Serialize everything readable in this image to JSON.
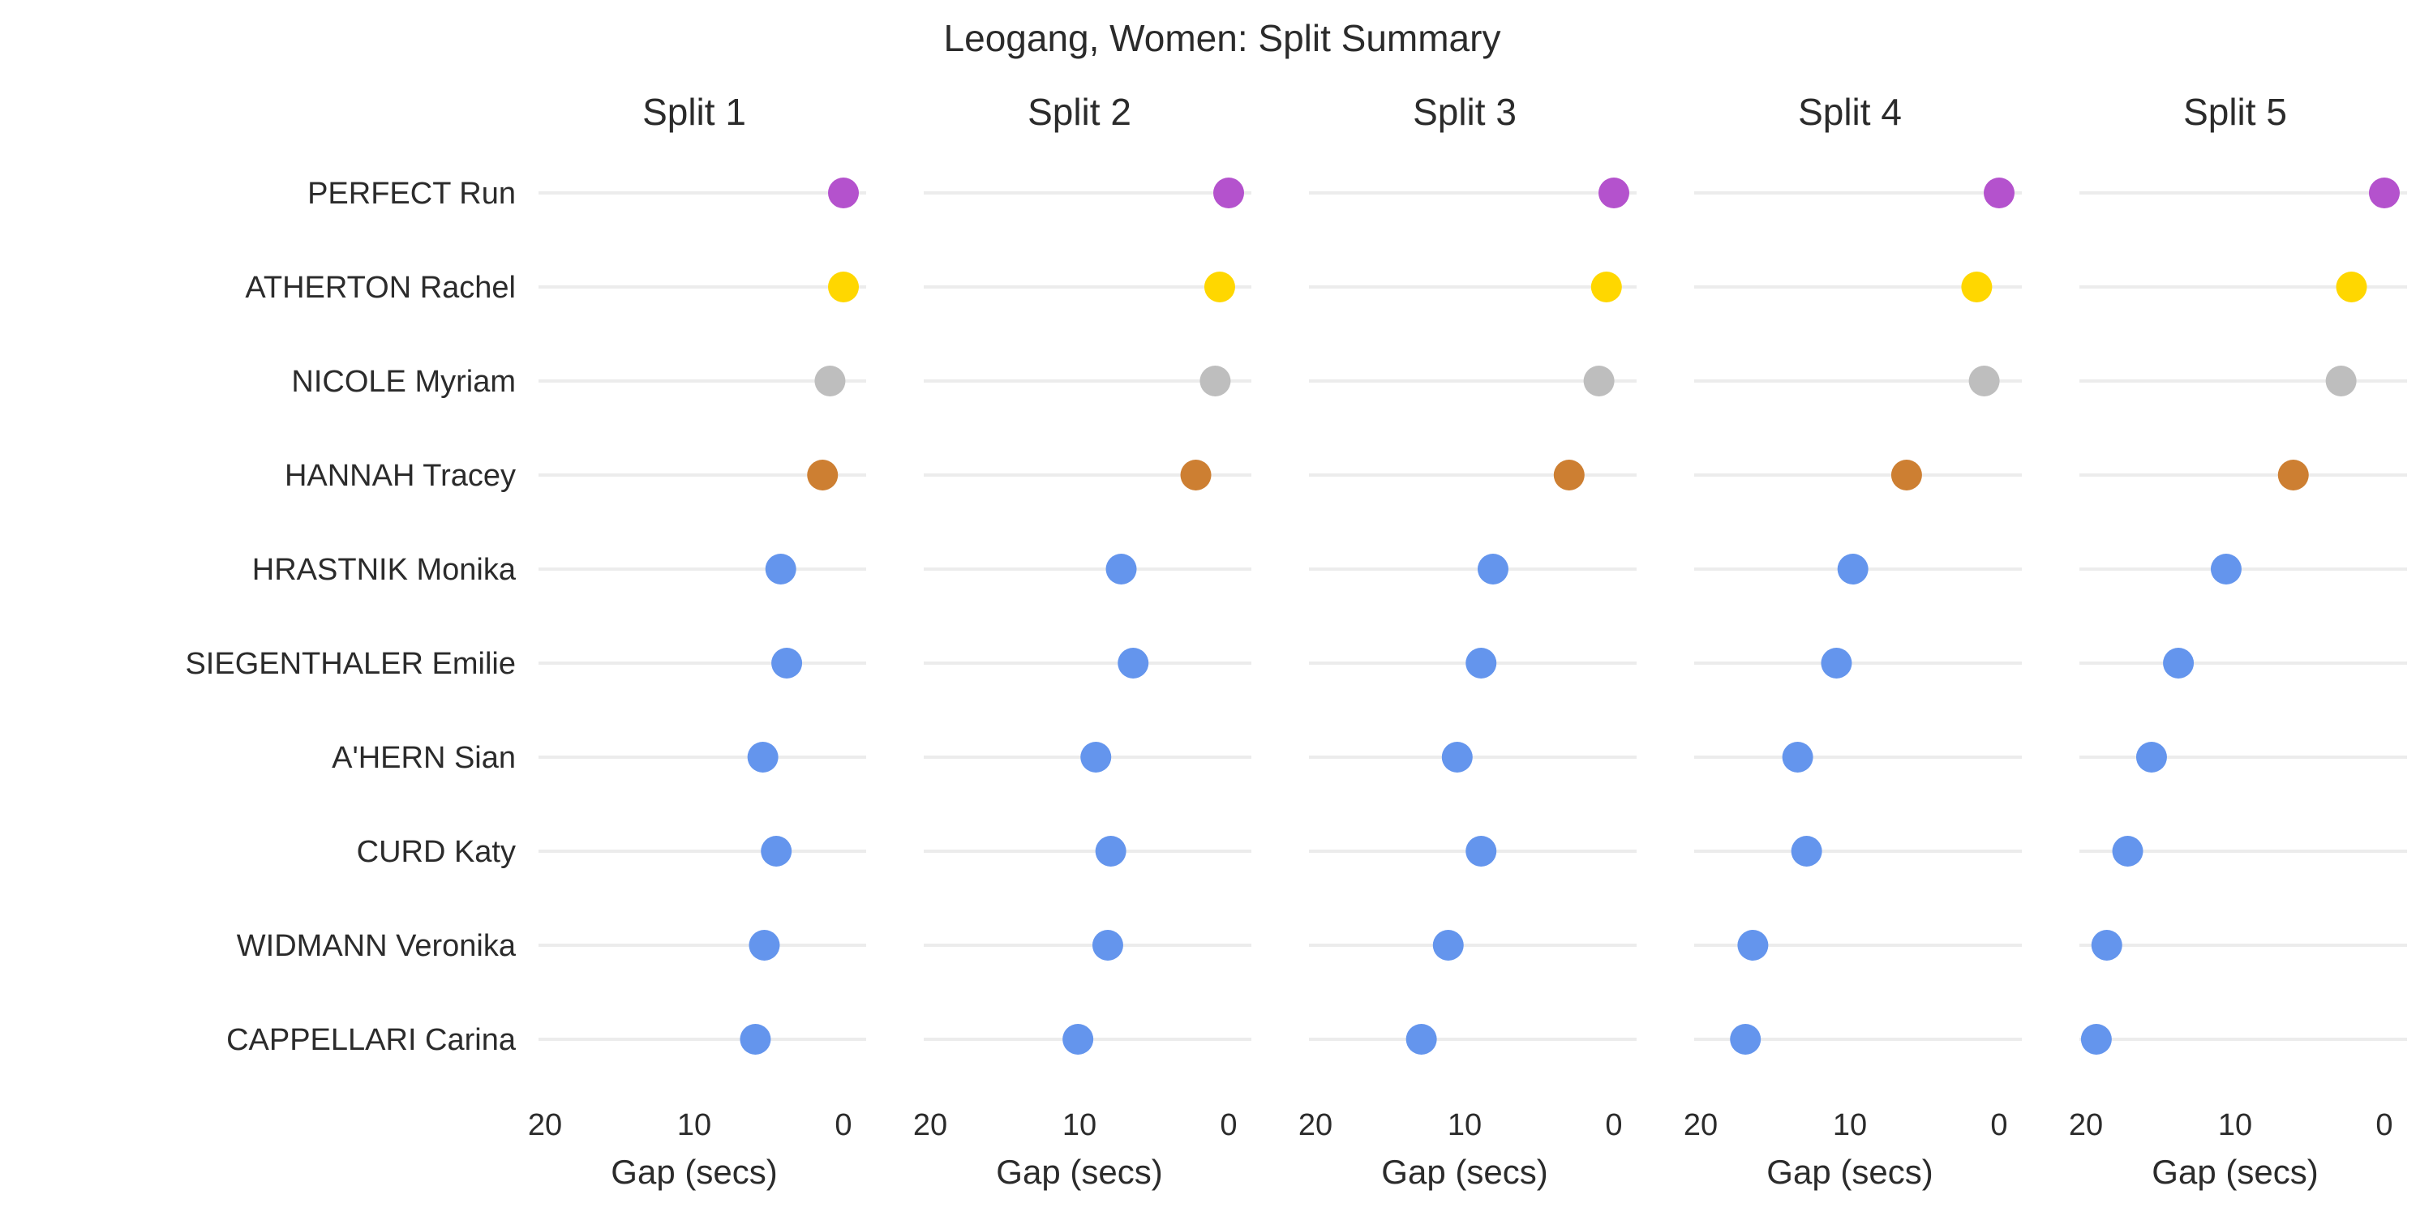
{
  "chart_data": {
    "type": "scatter",
    "title": "Leogang, Women: Split Summary",
    "xlabel": "Gap (secs)",
    "x_reversed": true,
    "xlim": [
      20,
      0
    ],
    "xticks": [
      20,
      10,
      0
    ],
    "riders": [
      "PERFECT Run",
      "ATHERTON Rachel",
      "NICOLE Myriam",
      "HANNAH Tracey",
      "HRASTNIK Monika",
      "SIEGENTHALER Emilie",
      "A'HERN Sian",
      "CURD Katy",
      "WIDMANN Veronika",
      "CAPPELLARI Carina"
    ],
    "colors": {
      "PERFECT Run": "#b452cd",
      "ATHERTON Rachel": "#ffd700",
      "NICOLE Myriam": "#bebebe",
      "HANNAH Tracey": "#cd7f32",
      "other": "#6495ed"
    },
    "panels": [
      {
        "name": "Split 1",
        "gaps": [
          0,
          0,
          0.9,
          1.4,
          4.2,
          3.8,
          5.4,
          4.5,
          5.3,
          5.9
        ]
      },
      {
        "name": "Split 2",
        "gaps": [
          0,
          0.6,
          0.9,
          2.2,
          7.2,
          6.4,
          8.9,
          7.9,
          8.1,
          10.1
        ]
      },
      {
        "name": "Split 3",
        "gaps": [
          0,
          0.5,
          1.0,
          3.0,
          8.1,
          8.9,
          10.5,
          8.9,
          11.1,
          12.9
        ]
      },
      {
        "name": "Split 4",
        "gaps": [
          0,
          1.5,
          1.0,
          6.2,
          9.8,
          10.9,
          13.5,
          12.9,
          16.5,
          17.0
        ]
      },
      {
        "name": "Split 5",
        "gaps": [
          0,
          2.2,
          2.9,
          6.1,
          10.6,
          13.8,
          15.6,
          17.2,
          18.6,
          19.3
        ]
      }
    ]
  }
}
